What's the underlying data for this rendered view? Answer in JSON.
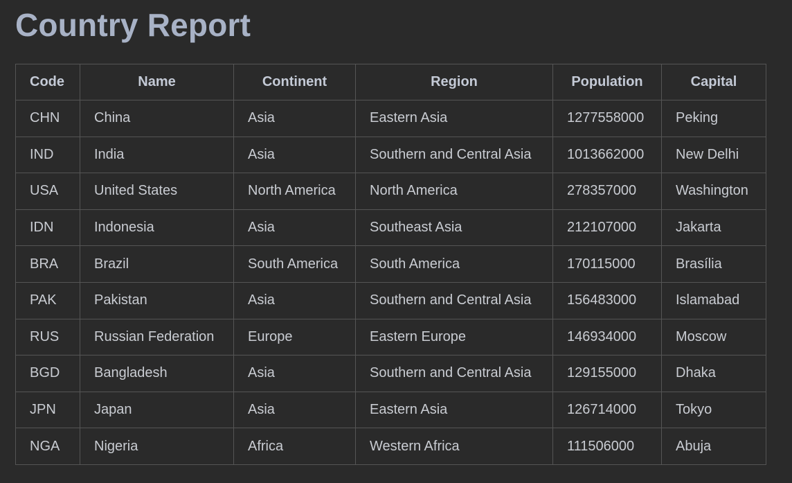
{
  "title": "Country Report",
  "table": {
    "headers": [
      "Code",
      "Name",
      "Continent",
      "Region",
      "Population",
      "Capital"
    ],
    "rows": [
      [
        "CHN",
        "China",
        "Asia",
        "Eastern Asia",
        "1277558000",
        "Peking"
      ],
      [
        "IND",
        "India",
        "Asia",
        "Southern and Central Asia",
        "1013662000",
        "New Delhi"
      ],
      [
        "USA",
        "United States",
        "North America",
        "North America",
        "278357000",
        "Washington"
      ],
      [
        "IDN",
        "Indonesia",
        "Asia",
        "Southeast Asia",
        "212107000",
        "Jakarta"
      ],
      [
        "BRA",
        "Brazil",
        "South America",
        "South America",
        "170115000",
        "Brasília"
      ],
      [
        "PAK",
        "Pakistan",
        "Asia",
        "Southern and Central Asia",
        "156483000",
        "Islamabad"
      ],
      [
        "RUS",
        "Russian Federation",
        "Europe",
        "Eastern Europe",
        "146934000",
        "Moscow"
      ],
      [
        "BGD",
        "Bangladesh",
        "Asia",
        "Southern and Central Asia",
        "129155000",
        "Dhaka"
      ],
      [
        "JPN",
        "Japan",
        "Asia",
        "Eastern Asia",
        "126714000",
        "Tokyo"
      ],
      [
        "NGA",
        "Nigeria",
        "Africa",
        "Western Africa",
        "111506000",
        "Abuja"
      ]
    ]
  }
}
